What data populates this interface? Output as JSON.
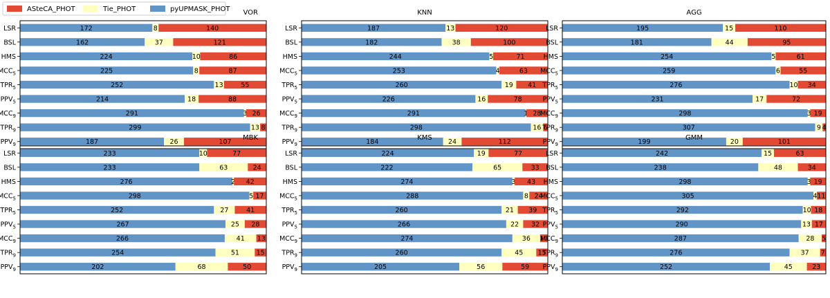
{
  "chart_data": {
    "type": "bar",
    "orientation": "horizontal",
    "stacked": true,
    "legend": {
      "placement": "top-left",
      "entries": [
        {
          "name": "ASteCA_PHOT",
          "color": "#e34a33"
        },
        {
          "name": "Tie_PHOT",
          "color": "#ffffbf"
        },
        {
          "name": "pyUPMASK_PHOT",
          "color": "#6194c7"
        }
      ]
    },
    "categories": [
      "LSR",
      "BSL",
      "HMS",
      "MCC",
      "TPR",
      "PPV",
      "MCC",
      "TPR",
      "PPV"
    ],
    "category_subscripts": [
      "",
      "",
      "",
      "5",
      "5",
      "5",
      "9",
      "9",
      "9"
    ],
    "xlim": [
      0,
      320
    ],
    "series_order": [
      "pyUPMASK_PHOT",
      "Tie_PHOT",
      "ASteCA_PHOT"
    ],
    "panels": [
      {
        "title": "VOR",
        "pyUPMASK_PHOT": [
          172,
          162,
          224,
          225,
          252,
          214,
          291,
          299,
          187
        ],
        "Tie_PHOT": [
          8,
          37,
          10,
          8,
          13,
          18,
          3,
          13,
          26
        ],
        "ASteCA_PHOT": [
          140,
          121,
          86,
          87,
          55,
          88,
          26,
          8,
          107
        ]
      },
      {
        "title": "KNN",
        "pyUPMASK_PHOT": [
          187,
          182,
          244,
          253,
          260,
          226,
          291,
          298,
          184
        ],
        "Tie_PHOT": [
          13,
          38,
          5,
          4,
          19,
          16,
          1,
          16,
          24
        ],
        "ASteCA_PHOT": [
          120,
          100,
          71,
          63,
          41,
          78,
          28,
          6,
          112
        ]
      },
      {
        "title": "AGG",
        "pyUPMASK_PHOT": [
          195,
          181,
          254,
          259,
          276,
          231,
          298,
          307,
          199
        ],
        "Tie_PHOT": [
          15,
          44,
          5,
          6,
          10,
          17,
          3,
          9,
          20
        ],
        "ASteCA_PHOT": [
          110,
          95,
          61,
          55,
          34,
          72,
          19,
          4,
          101
        ]
      },
      {
        "title": "MBK",
        "pyUPMASK_PHOT": [
          233,
          233,
          276,
          298,
          252,
          267,
          266,
          254,
          202
        ],
        "Tie_PHOT": [
          10,
          63,
          2,
          5,
          27,
          25,
          41,
          51,
          68
        ],
        "ASteCA_PHOT": [
          77,
          24,
          42,
          17,
          41,
          28,
          13,
          15,
          50
        ]
      },
      {
        "title": "KMS",
        "pyUPMASK_PHOT": [
          224,
          222,
          274,
          288,
          260,
          266,
          274,
          260,
          205
        ],
        "Tie_PHOT": [
          19,
          65,
          3,
          8,
          21,
          22,
          36,
          45,
          56
        ],
        "ASteCA_PHOT": [
          77,
          33,
          43,
          24,
          39,
          32,
          10,
          15,
          59
        ]
      },
      {
        "title": "GMM",
        "pyUPMASK_PHOT": [
          242,
          238,
          298,
          305,
          292,
          290,
          287,
          276,
          252
        ],
        "Tie_PHOT": [
          15,
          48,
          3,
          4,
          10,
          13,
          28,
          37,
          45
        ],
        "ASteCA_PHOT": [
          63,
          34,
          19,
          11,
          18,
          17,
          5,
          7,
          23
        ]
      }
    ]
  }
}
